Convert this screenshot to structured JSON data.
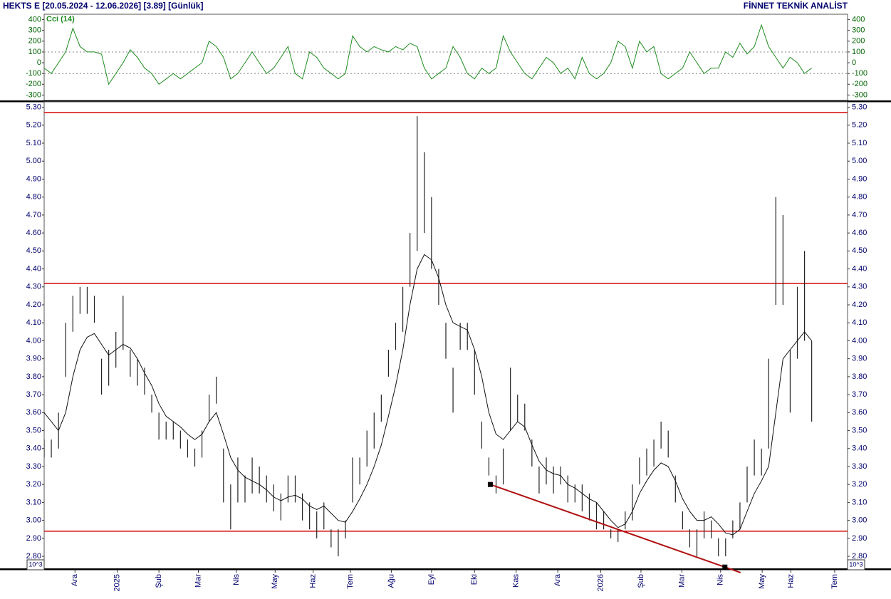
{
  "header": {
    "title": "HEKTS E  [20.05.2024 - 12.06.2026]  [3.89]  [Günlük]",
    "brand": "FİNNET TEKNİK ANALİST"
  },
  "chart_data": [
    {
      "type": "line",
      "label_color": "#006400",
      "x": [
        0,
        1,
        2,
        3,
        4,
        5,
        6,
        7,
        8,
        9,
        10,
        11,
        12,
        13,
        14,
        15,
        16,
        17,
        18,
        19,
        20,
        21,
        22,
        23,
        24,
        25,
        26,
        27,
        28,
        29,
        30,
        31,
        32,
        33,
        34,
        35,
        36,
        37,
        38,
        39,
        40,
        41,
        42,
        43,
        44,
        45,
        46,
        47,
        48,
        49,
        50,
        51,
        52,
        53,
        54,
        55,
        56,
        57,
        58,
        59,
        60,
        61,
        62,
        63,
        64,
        65,
        66,
        67,
        68,
        69,
        70,
        71,
        72,
        73,
        74,
        75,
        76,
        77,
        78,
        79,
        80,
        81,
        82,
        83,
        84,
        85,
        86,
        87,
        88,
        89,
        90,
        91,
        92,
        93,
        94,
        95,
        96,
        97,
        98,
        99,
        100,
        101,
        102,
        103,
        104,
        105,
        106,
        107
      ],
      "xlim": [
        0,
        112
      ],
      "series": [
        {
          "name": "Cci (14)",
          "color": "#1e8a1e",
          "values": [
            -50,
            -100,
            0,
            100,
            320,
            150,
            100,
            100,
            80,
            -200,
            -100,
            0,
            120,
            50,
            -50,
            -100,
            -200,
            -150,
            -100,
            -150,
            -100,
            -50,
            0,
            200,
            150,
            50,
            -150,
            -100,
            0,
            100,
            0,
            -100,
            -50,
            50,
            150,
            -100,
            -150,
            100,
            50,
            -50,
            -100,
            -150,
            -100,
            250,
            150,
            100,
            150,
            120,
            100,
            150,
            120,
            180,
            150,
            -50,
            -150,
            -100,
            -50,
            150,
            50,
            -100,
            -150,
            -50,
            -100,
            -50,
            250,
            100,
            0,
            -100,
            -150,
            -50,
            50,
            0,
            -100,
            -50,
            -150,
            50,
            -100,
            -150,
            -100,
            0,
            200,
            150,
            -50,
            200,
            100,
            150,
            -100,
            -150,
            -100,
            -50,
            100,
            0,
            -100,
            -50,
            -50,
            100,
            50,
            180,
            80,
            150,
            350,
            150,
            50,
            -50,
            50,
            0,
            -100,
            -50
          ]
        }
      ],
      "hlines": [
        100,
        -100
      ],
      "ylim": [
        -350,
        450
      ],
      "yticks": [
        400,
        300,
        200,
        100,
        0,
        -100,
        -200,
        -300
      ]
    },
    {
      "type": "range",
      "label_color": "#00006e",
      "x": [
        0,
        1,
        2,
        3,
        4,
        5,
        6,
        7,
        8,
        9,
        10,
        11,
        12,
        13,
        14,
        15,
        16,
        17,
        18,
        19,
        20,
        21,
        22,
        23,
        24,
        25,
        26,
        27,
        28,
        29,
        30,
        31,
        32,
        33,
        34,
        35,
        36,
        37,
        38,
        39,
        40,
        41,
        42,
        43,
        44,
        45,
        46,
        47,
        48,
        49,
        50,
        51,
        52,
        53,
        54,
        55,
        56,
        57,
        58,
        59,
        60,
        61,
        62,
        63,
        64,
        65,
        66,
        67,
        68,
        69,
        70,
        71,
        72,
        73,
        74,
        75,
        76,
        77,
        78,
        79,
        80,
        81,
        82,
        83,
        84,
        85,
        86,
        87,
        88,
        89,
        90,
        91,
        92,
        93,
        94,
        95,
        96,
        97,
        98,
        99,
        100,
        101,
        102,
        103,
        104,
        105,
        106,
        107
      ],
      "xlim": [
        0,
        112
      ],
      "xticks": [
        {
          "value": 4.3,
          "label": "Ara"
        },
        {
          "value": 10.2,
          "label": "2025"
        },
        {
          "value": 16,
          "label": "Şub"
        },
        {
          "value": 21.5,
          "label": "Mar"
        },
        {
          "value": 26.8,
          "label": "Nis"
        },
        {
          "value": 32.2,
          "label": "May"
        },
        {
          "value": 37.5,
          "label": "Haz"
        },
        {
          "value": 42.7,
          "label": "Tem"
        },
        {
          "value": 48.4,
          "label": "Ağu"
        },
        {
          "value": 54,
          "label": "Eyl"
        },
        {
          "value": 60,
          "label": "Eki"
        },
        {
          "value": 65.8,
          "label": "Kas"
        },
        {
          "value": 71.6,
          "label": "Ara"
        },
        {
          "value": 77.6,
          "label": "2026"
        },
        {
          "value": 83.2,
          "label": "Şub"
        },
        {
          "value": 88.9,
          "label": "Mar"
        },
        {
          "value": 94.3,
          "label": "Nis"
        },
        {
          "value": 100.1,
          "label": "May"
        },
        {
          "value": 104.1,
          "label": "Haz"
        },
        {
          "value": 110.2,
          "label": "Tem"
        }
      ],
      "high": [
        3.45,
        3.45,
        3.6,
        4.1,
        4.25,
        4.3,
        4.3,
        4.25,
        3.9,
        3.95,
        4.05,
        4.25,
        3.95,
        3.9,
        3.85,
        3.7,
        3.6,
        3.55,
        3.55,
        3.5,
        3.45,
        3.4,
        3.5,
        3.7,
        3.8,
        3.4,
        3.2,
        3.35,
        3.25,
        3.35,
        3.3,
        3.25,
        3.2,
        3.15,
        3.25,
        3.25,
        3.15,
        3.1,
        3.05,
        3.1,
        2.95,
        2.95,
        3.0,
        3.35,
        3.35,
        3.5,
        3.6,
        3.7,
        3.95,
        4.1,
        4.3,
        4.6,
        5.25,
        5.05,
        4.8,
        4.4,
        4.1,
        3.85,
        4.1,
        4.1,
        3.95,
        3.55,
        3.35,
        3.25,
        3.4,
        3.85,
        3.7,
        3.65,
        3.45,
        3.3,
        3.35,
        3.3,
        3.3,
        3.25,
        3.2,
        3.2,
        3.15,
        3.1,
        3.05,
        2.95,
        2.95,
        3.05,
        3.2,
        3.35,
        3.4,
        3.45,
        3.55,
        3.5,
        3.25,
        3.05,
        2.95,
        2.95,
        3.05,
        3.0,
        2.9,
        2.9,
        3.0,
        3.1,
        3.3,
        3.45,
        3.4,
        3.9,
        4.8,
        4.7,
        3.95,
        4.3,
        4.5,
        4.0
      ],
      "low": [
        3.35,
        3.35,
        3.4,
        3.8,
        4.05,
        4.15,
        4.15,
        4.1,
        3.7,
        3.75,
        3.85,
        3.95,
        3.8,
        3.75,
        3.7,
        3.6,
        3.45,
        3.45,
        3.45,
        3.4,
        3.35,
        3.3,
        3.35,
        3.55,
        3.65,
        3.1,
        2.95,
        3.1,
        3.1,
        3.15,
        3.15,
        3.1,
        3.05,
        3.0,
        3.1,
        3.1,
        3.0,
        2.95,
        2.9,
        2.95,
        2.85,
        2.8,
        2.9,
        3.1,
        3.2,
        3.3,
        3.4,
        3.55,
        3.8,
        3.95,
        4.05,
        4.3,
        4.5,
        4.6,
        4.4,
        4.2,
        3.9,
        3.6,
        3.95,
        3.95,
        3.7,
        3.4,
        3.25,
        3.15,
        3.2,
        3.5,
        3.55,
        3.5,
        3.3,
        3.15,
        3.2,
        3.15,
        3.2,
        3.1,
        3.1,
        3.05,
        3.0,
        2.95,
        2.95,
        2.9,
        2.88,
        2.95,
        3.0,
        3.2,
        3.25,
        3.3,
        3.4,
        3.35,
        3.1,
        2.95,
        2.85,
        2.8,
        2.9,
        2.9,
        2.8,
        2.8,
        2.9,
        2.95,
        3.1,
        3.25,
        3.25,
        3.4,
        4.2,
        4.2,
        3.6,
        3.9,
        4.0,
        3.55
      ],
      "bar_color": "#222222",
      "ma": {
        "color": "#111111",
        "values": [
          3.6,
          3.55,
          3.5,
          3.6,
          3.8,
          3.95,
          4.02,
          4.04,
          3.98,
          3.92,
          3.95,
          3.98,
          3.96,
          3.9,
          3.82,
          3.75,
          3.65,
          3.58,
          3.55,
          3.52,
          3.48,
          3.45,
          3.48,
          3.55,
          3.6,
          3.48,
          3.35,
          3.28,
          3.24,
          3.22,
          3.2,
          3.17,
          3.13,
          3.11,
          3.13,
          3.14,
          3.12,
          3.08,
          3.06,
          3.08,
          3.04,
          3.0,
          2.99,
          3.05,
          3.12,
          3.2,
          3.3,
          3.42,
          3.58,
          3.75,
          3.95,
          4.2,
          4.4,
          4.48,
          4.45,
          4.35,
          4.2,
          4.1,
          4.08,
          4.06,
          3.95,
          3.8,
          3.6,
          3.48,
          3.45,
          3.5,
          3.55,
          3.52,
          3.42,
          3.33,
          3.28,
          3.26,
          3.25,
          3.2,
          3.18,
          3.15,
          3.12,
          3.1,
          3.05,
          3.0,
          2.96,
          2.98,
          3.05,
          3.15,
          3.22,
          3.28,
          3.32,
          3.3,
          3.22,
          3.12,
          3.05,
          3.0,
          3.0,
          3.02,
          2.98,
          2.93,
          2.92,
          2.95,
          3.05,
          3.15,
          3.22,
          3.3,
          3.6,
          3.9,
          3.95,
          4.0,
          4.05,
          4.0
        ]
      },
      "hlines": [
        5.27,
        4.32,
        2.94
      ],
      "hline_color": "#d40000",
      "trendline": {
        "x": [
          62.2,
          94.9
        ],
        "y": [
          3.2,
          2.74
        ],
        "color": "#b01010"
      },
      "scale_label": "10^3",
      "ylim": [
        2.725,
        5.33
      ],
      "yticks": [
        {
          "value": 2.8,
          "label": "2.80"
        },
        {
          "value": 2.9,
          "label": "2.90"
        },
        {
          "value": 3.0,
          "label": "3.00"
        },
        {
          "value": 3.1,
          "label": "3.10"
        },
        {
          "value": 3.2,
          "label": "3.20"
        },
        {
          "value": 3.3,
          "label": "3.30"
        },
        {
          "value": 3.4,
          "label": "3.40"
        },
        {
          "value": 3.5,
          "label": "3.50"
        },
        {
          "value": 3.6,
          "label": "3.60"
        },
        {
          "value": 3.7,
          "label": "3.70"
        },
        {
          "value": 3.8,
          "label": "3.80"
        },
        {
          "value": 3.9,
          "label": "3.90"
        },
        {
          "value": 4.0,
          "label": "4.00"
        },
        {
          "value": 4.1,
          "label": "4.10"
        },
        {
          "value": 4.2,
          "label": "4.20"
        },
        {
          "value": 4.3,
          "label": "4.30"
        },
        {
          "value": 4.4,
          "label": "4.40"
        },
        {
          "value": 4.5,
          "label": "4.50"
        },
        {
          "value": 4.6,
          "label": "4.60"
        },
        {
          "value": 4.7,
          "label": "4.70"
        },
        {
          "value": 4.8,
          "label": "4.80"
        },
        {
          "value": 4.9,
          "label": "4.90"
        },
        {
          "value": 5.0,
          "label": "5.00"
        },
        {
          "value": 5.1,
          "label": "5.10"
        },
        {
          "value": 5.2,
          "label": "5.20"
        },
        {
          "value": 5.3,
          "label": "5.30"
        }
      ]
    }
  ]
}
